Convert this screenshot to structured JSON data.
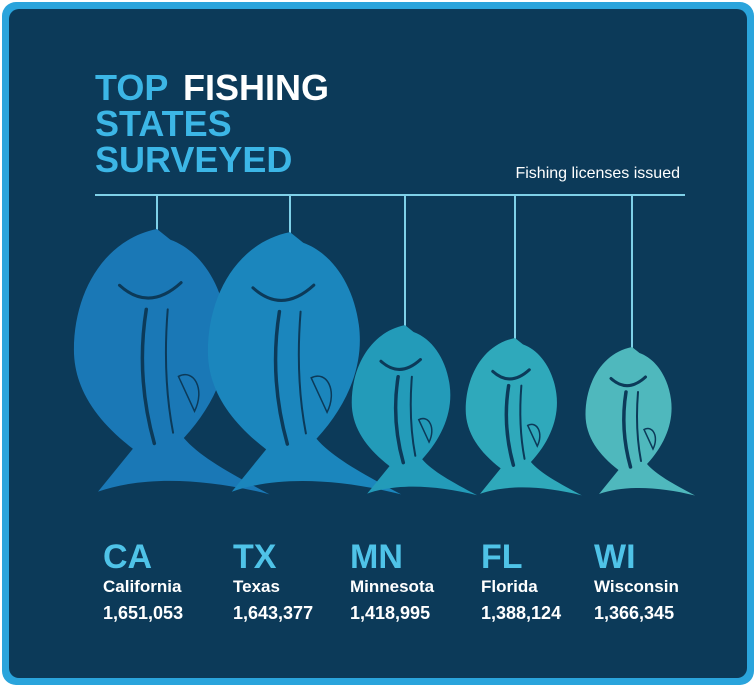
{
  "chart_data": {
    "type": "pictograph",
    "title": [
      "TOP",
      "FISHING",
      "STATES",
      "SURVEYED"
    ],
    "subtitle": "Fishing licenses issued",
    "categories": [
      "CA",
      "TX",
      "MN",
      "FL",
      "WI"
    ],
    "names": [
      "California",
      "Texas",
      "Minnesota",
      "Florida",
      "Wisconsin"
    ],
    "values": [
      1651053,
      1643377,
      1418995,
      1388124,
      1366345
    ],
    "value_labels": [
      "1,651,053",
      "1,643,377",
      "1,418,995",
      "1,388,124",
      "1,366,345"
    ],
    "colors": [
      "#1a78b6",
      "#1b86bd",
      "#239bb9",
      "#2fa9bb",
      "#4fb8bd"
    ]
  }
}
